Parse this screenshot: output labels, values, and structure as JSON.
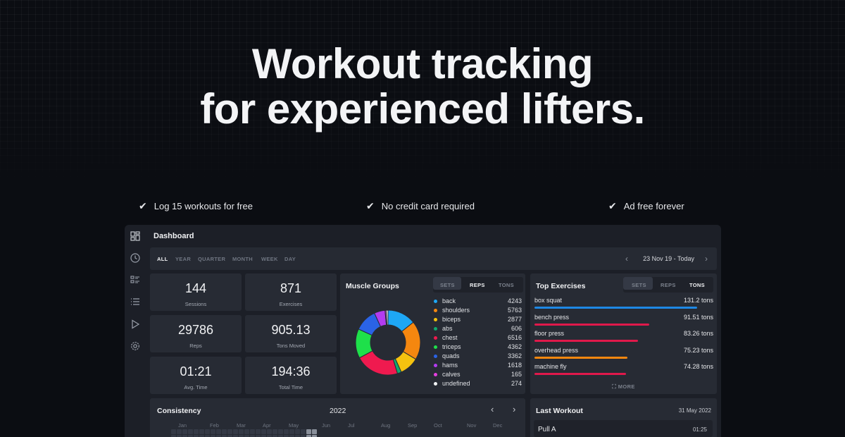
{
  "hero": {
    "line1": "Workout tracking",
    "line2": "for experienced lifters."
  },
  "features": [
    {
      "check": "✔",
      "text": "Log 15 workouts for free"
    },
    {
      "check": "✔",
      "text": "No credit card required"
    },
    {
      "check": "✔",
      "text": "Ad free forever"
    }
  ],
  "app": {
    "title": "Dashboard",
    "sidebar_icons": [
      "dashboard-icon",
      "history-icon",
      "exercises-icon",
      "list-icon",
      "play-icon",
      "settings-icon"
    ],
    "range_tabs": [
      "ALL",
      "YEAR",
      "QUARTER",
      "MONTH",
      "WEEK",
      "DAY"
    ],
    "active_range": "ALL",
    "date_range": "23 Nov 19 - Today",
    "stats": [
      {
        "value": "144",
        "label": "Sessions"
      },
      {
        "value": "871",
        "label": "Exercises"
      },
      {
        "value": "29786",
        "label": "Reps"
      },
      {
        "value": "905.13",
        "label": "Tons Moved"
      },
      {
        "value": "01:21",
        "label": "Avg. Time"
      },
      {
        "value": "194:36",
        "label": "Total Time"
      }
    ],
    "muscle_groups": {
      "title": "Muscle Groups",
      "tabs": [
        "SETS",
        "REPS",
        "TONS"
      ],
      "active_tab": "REPS",
      "items": [
        {
          "name": "back",
          "value": "4243",
          "color": "#1ea7f5"
        },
        {
          "name": "shoulders",
          "value": "5763",
          "color": "#f5870f"
        },
        {
          "name": "biceps",
          "value": "2877",
          "color": "#f5c20f"
        },
        {
          "name": "abs",
          "value": "606",
          "color": "#10a96e"
        },
        {
          "name": "chest",
          "value": "6516",
          "color": "#ef1a4f"
        },
        {
          "name": "triceps",
          "value": "4362",
          "color": "#1ee04a"
        },
        {
          "name": "quads",
          "value": "3362",
          "color": "#2a63e6"
        },
        {
          "name": "hams",
          "value": "1618",
          "color": "#b33cf0"
        },
        {
          "name": "calves",
          "value": "165",
          "color": "#e43fe0"
        },
        {
          "name": "undefined",
          "value": "274",
          "color": "#f3f4f6"
        }
      ]
    },
    "top_exercises": {
      "title": "Top Exercises",
      "tabs": [
        "SETS",
        "REPS",
        "TONS"
      ],
      "active_tab": "TONS",
      "items": [
        {
          "name": "box squat",
          "value": "131.2 tons",
          "fraction": 0.91,
          "color": "#1e88e5"
        },
        {
          "name": "bench press",
          "value": "91.51 tons",
          "fraction": 0.64,
          "color": "#e0194b"
        },
        {
          "name": "floor press",
          "value": "83.26 tons",
          "fraction": 0.58,
          "color": "#e0194b"
        },
        {
          "name": "overhead press",
          "value": "75.23 tons",
          "fraction": 0.52,
          "color": "#f5870f"
        },
        {
          "name": "machine fly",
          "value": "74.28 tons",
          "fraction": 0.51,
          "color": "#e0194b"
        }
      ],
      "more_label": "MORE"
    },
    "consistency": {
      "title": "Consistency",
      "year": "2022",
      "months": [
        "Jan",
        "Feb",
        "Mar",
        "Apr",
        "May",
        "Jun",
        "Jul",
        "Aug",
        "Sep",
        "Oct",
        "Nov",
        "Dec"
      ]
    },
    "last_workout": {
      "title": "Last Workout",
      "date": "31 May 2022",
      "name": "Pull A",
      "duration": "01:25"
    }
  }
}
